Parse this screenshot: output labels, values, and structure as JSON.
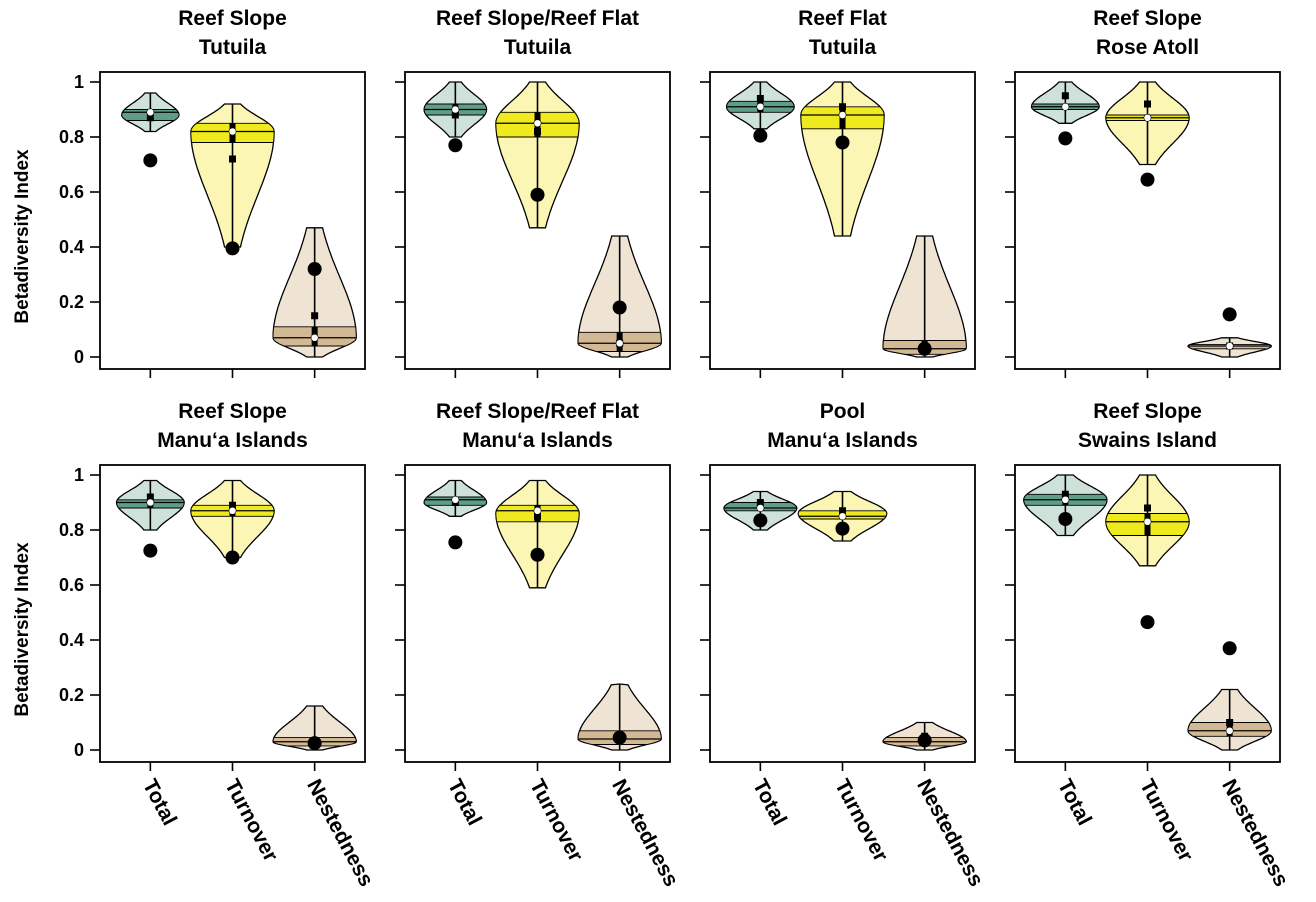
{
  "chart_data": {
    "type": "violin",
    "ylabel": "Betadiversity Index",
    "ylim": [
      0,
      1
    ],
    "yticks": [
      0,
      0.2,
      0.4,
      0.6,
      0.8,
      1
    ],
    "ytick_labels": [
      "0",
      "0.2",
      "0.4",
      "0.6",
      "0.8",
      "1"
    ],
    "categories": [
      "Total",
      "Turnover",
      "Nestedness"
    ],
    "category_colors": {
      "light": [
        "#cfe2da",
        "#fbf6b4",
        "#efe3d3"
      ],
      "dark": [
        "#5e9e89",
        "#efea1d",
        "#d3b894"
      ]
    },
    "panels": [
      {
        "title_line1": "Reef Slope",
        "title_line2": "Tutuila",
        "violins": [
          {
            "category": "Total",
            "min": 0.82,
            "max": 0.96,
            "mode": 0.88,
            "width": 0.55,
            "q1": 0.86,
            "q3": 0.9,
            "median": 0.89,
            "mean": 0.87,
            "observed": 0.715
          },
          {
            "category": "Turnover",
            "min": 0.4,
            "max": 0.92,
            "mode": 0.82,
            "width": 0.8,
            "q1": 0.78,
            "q3": 0.85,
            "median": 0.82,
            "mean": 0.72,
            "observed": 0.395
          },
          {
            "category": "Nestedness",
            "min": 0.0,
            "max": 0.47,
            "mode": 0.07,
            "width": 0.8,
            "q1": 0.04,
            "q3": 0.11,
            "median": 0.07,
            "mean": 0.15,
            "observed": 0.32
          }
        ]
      },
      {
        "title_line1": "Reef Slope/Reef Flat",
        "title_line2": "Tutuila",
        "violins": [
          {
            "category": "Total",
            "min": 0.8,
            "max": 1.0,
            "mode": 0.9,
            "width": 0.6,
            "q1": 0.88,
            "q3": 0.92,
            "median": 0.9,
            "mean": 0.88,
            "observed": 0.77
          },
          {
            "category": "Turnover",
            "min": 0.47,
            "max": 1.0,
            "mode": 0.85,
            "width": 0.8,
            "q1": 0.8,
            "q3": 0.89,
            "median": 0.85,
            "mean": 0.82,
            "observed": 0.59
          },
          {
            "category": "Nestedness",
            "min": 0.0,
            "max": 0.44,
            "mode": 0.05,
            "width": 0.8,
            "q1": 0.02,
            "q3": 0.09,
            "median": 0.05,
            "mean": 0.05,
            "observed": 0.18
          }
        ]
      },
      {
        "title_line1": "Reef Flat",
        "title_line2": "Tutuila",
        "violins": [
          {
            "category": "Total",
            "min": 0.83,
            "max": 1.0,
            "mode": 0.91,
            "width": 0.65,
            "q1": 0.89,
            "q3": 0.93,
            "median": 0.91,
            "mean": 0.94,
            "observed": 0.805
          },
          {
            "category": "Turnover",
            "min": 0.44,
            "max": 1.0,
            "mode": 0.88,
            "width": 0.8,
            "q1": 0.83,
            "q3": 0.91,
            "median": 0.88,
            "mean": 0.91,
            "observed": 0.78
          },
          {
            "category": "Nestedness",
            "min": 0.0,
            "max": 0.44,
            "mode": 0.03,
            "width": 0.8,
            "q1": 0.01,
            "q3": 0.06,
            "median": 0.03,
            "mean": 0.03,
            "observed": 0.03
          }
        ]
      },
      {
        "title_line1": "Reef Slope",
        "title_line2": "Rose Atoll",
        "violins": [
          {
            "category": "Total",
            "min": 0.85,
            "max": 1.0,
            "mode": 0.91,
            "width": 0.65,
            "q1": 0.9,
            "q3": 0.92,
            "median": 0.91,
            "mean": 0.95,
            "observed": 0.795
          },
          {
            "category": "Turnover",
            "min": 0.7,
            "max": 1.0,
            "mode": 0.87,
            "width": 0.8,
            "q1": 0.86,
            "q3": 0.88,
            "median": 0.87,
            "mean": 0.92,
            "observed": 0.645
          },
          {
            "category": "Nestedness",
            "min": 0.0,
            "max": 0.07,
            "mode": 0.04,
            "width": 0.8,
            "q1": 0.03,
            "q3": 0.045,
            "median": 0.04,
            "mean": 0.04,
            "observed": 0.155
          }
        ]
      },
      {
        "title_line1": "Reef Slope",
        "title_line2": "Manu‘a Islands",
        "violins": [
          {
            "category": "Total",
            "min": 0.8,
            "max": 0.98,
            "mode": 0.9,
            "width": 0.65,
            "q1": 0.88,
            "q3": 0.91,
            "median": 0.9,
            "mean": 0.92,
            "observed": 0.725
          },
          {
            "category": "Turnover",
            "min": 0.7,
            "max": 0.98,
            "mode": 0.87,
            "width": 0.8,
            "q1": 0.85,
            "q3": 0.89,
            "median": 0.87,
            "mean": 0.89,
            "observed": 0.7
          },
          {
            "category": "Nestedness",
            "min": 0.0,
            "max": 0.16,
            "mode": 0.03,
            "width": 0.8,
            "q1": 0.015,
            "q3": 0.045,
            "median": 0.03,
            "mean": 0.03,
            "observed": 0.025
          }
        ]
      },
      {
        "title_line1": "Reef Slope/Reef Flat",
        "title_line2": "Manu‘a Islands",
        "violins": [
          {
            "category": "Total",
            "min": 0.85,
            "max": 0.98,
            "mode": 0.9,
            "width": 0.6,
            "q1": 0.89,
            "q3": 0.92,
            "median": 0.91,
            "mean": 0.9,
            "observed": 0.755
          },
          {
            "category": "Turnover",
            "min": 0.59,
            "max": 0.98,
            "mode": 0.86,
            "width": 0.8,
            "q1": 0.83,
            "q3": 0.89,
            "median": 0.87,
            "mean": 0.85,
            "observed": 0.71
          },
          {
            "category": "Nestedness",
            "min": 0.0,
            "max": 0.24,
            "mode": 0.04,
            "width": 0.8,
            "q1": 0.02,
            "q3": 0.07,
            "median": 0.04,
            "mean": 0.05,
            "observed": 0.045
          }
        ]
      },
      {
        "title_line1": "Pool",
        "title_line2": "Manu‘a Islands",
        "violins": [
          {
            "category": "Total",
            "min": 0.8,
            "max": 0.94,
            "mode": 0.88,
            "width": 0.7,
            "q1": 0.87,
            "q3": 0.9,
            "median": 0.88,
            "mean": 0.9,
            "observed": 0.835
          },
          {
            "category": "Turnover",
            "min": 0.76,
            "max": 0.94,
            "mode": 0.86,
            "width": 0.85,
            "q1": 0.84,
            "q3": 0.87,
            "median": 0.85,
            "mean": 0.87,
            "observed": 0.805
          },
          {
            "category": "Nestedness",
            "min": 0.0,
            "max": 0.1,
            "mode": 0.03,
            "width": 0.8,
            "q1": 0.015,
            "q3": 0.045,
            "median": 0.03,
            "mean": 0.05,
            "observed": 0.035
          }
        ]
      },
      {
        "title_line1": "Reef Slope",
        "title_line2": "Swains Island",
        "violins": [
          {
            "category": "Total",
            "min": 0.78,
            "max": 1.0,
            "mode": 0.91,
            "width": 0.8,
            "q1": 0.89,
            "q3": 0.93,
            "median": 0.91,
            "mean": 0.93,
            "observed": 0.84
          },
          {
            "category": "Turnover",
            "min": 0.67,
            "max": 1.0,
            "mode": 0.83,
            "width": 0.8,
            "q1": 0.78,
            "q3": 0.86,
            "median": 0.83,
            "mean": 0.88,
            "observed": 0.465
          },
          {
            "category": "Nestedness",
            "min": 0.0,
            "max": 0.22,
            "mode": 0.07,
            "width": 0.8,
            "q1": 0.05,
            "q3": 0.1,
            "median": 0.07,
            "mean": 0.1,
            "observed": 0.37
          }
        ]
      }
    ]
  }
}
